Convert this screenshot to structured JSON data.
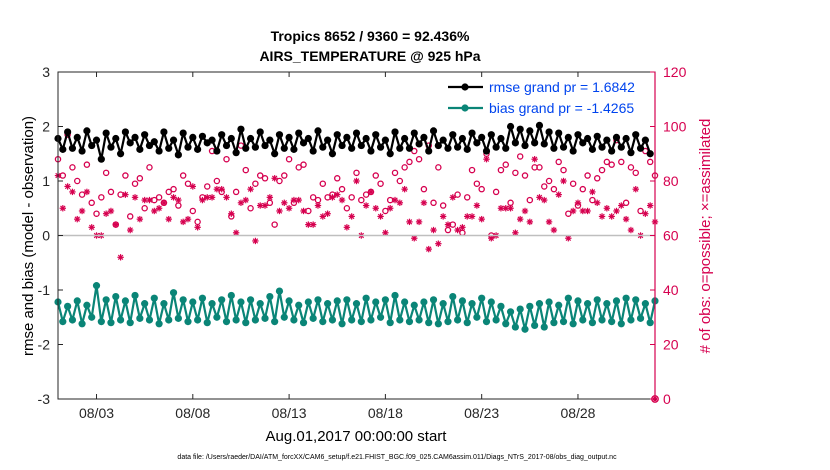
{
  "colors": {
    "rmse": "#000000",
    "bias": "#0a8577",
    "obs": "#d6004f",
    "zero_line": "#bfbfbf",
    "legend_text": "#0044ee"
  },
  "chart_data": {
    "type": "line",
    "title_line1": "Tropics 8652 / 9360 = 92.436%",
    "title_line2": "AIRS_TEMPERATURE @ 925 hPa",
    "ylabel_left": "rmse and bias (model - observation)",
    "ylabel_right": "# of obs: o=possible; ×=assimilated",
    "xlabel": "Aug.01,2017 00:00:00 start",
    "footnote": "data file: /Users/raeder/DAI/ATM_forcXX/CAM6_setup/f.e21.FHIST_BGC.f09_025.CAM6assim.011/Diags_NTrS_2017-08/obs_diag_output.nc",
    "x_range": [
      1.0,
      32.0
    ],
    "ylim_left": [
      -3,
      3
    ],
    "ylim_right": [
      0,
      120
    ],
    "y_ticks_left": [
      "3",
      "2",
      "1",
      "0",
      "-1",
      "-2",
      "-3"
    ],
    "y_ticks_right": [
      "120",
      "100",
      "80",
      "60",
      "40",
      "20",
      "0"
    ],
    "x_ticks": [
      {
        "day": 3,
        "label": "08/03"
      },
      {
        "day": 8,
        "label": "08/08"
      },
      {
        "day": 13,
        "label": "08/13"
      },
      {
        "day": 18,
        "label": "08/18"
      },
      {
        "day": 23,
        "label": "08/23"
      },
      {
        "day": 28,
        "label": "08/28"
      }
    ],
    "legend": {
      "position": "top-right",
      "entries": [
        "rmse grand pr = 1.6842",
        "bias grand pr = -1.4265"
      ]
    },
    "x_start": 1.0,
    "x_step": 0.25,
    "series": [
      {
        "name": "rmse",
        "axis": "left",
        "values": [
          1.78,
          1.58,
          1.9,
          1.6,
          1.8,
          1.55,
          1.92,
          1.65,
          1.75,
          1.4,
          1.88,
          1.62,
          1.78,
          1.5,
          1.9,
          1.7,
          1.8,
          1.58,
          1.85,
          1.65,
          1.72,
          1.55,
          1.9,
          1.6,
          1.75,
          1.48,
          1.88,
          1.62,
          1.8,
          1.58,
          1.82,
          1.7,
          1.75,
          1.55,
          1.85,
          1.65,
          1.78,
          1.52,
          1.95,
          1.6,
          1.78,
          1.62,
          1.9,
          1.65,
          1.75,
          1.5,
          1.85,
          1.6,
          1.8,
          1.58,
          1.88,
          1.7,
          1.78,
          1.55,
          1.92,
          1.62,
          1.75,
          1.5,
          1.85,
          1.65,
          1.8,
          1.6,
          1.88,
          1.65,
          1.78,
          1.55,
          1.85,
          1.62,
          1.75,
          1.5,
          1.9,
          1.6,
          1.78,
          1.6,
          1.88,
          1.68,
          1.8,
          1.55,
          1.92,
          1.65,
          1.75,
          1.6,
          1.85,
          1.62,
          1.78,
          1.58,
          1.88,
          1.7,
          1.8,
          1.55,
          1.85,
          1.62,
          1.78,
          1.6,
          2.0,
          1.7,
          1.95,
          1.65,
          1.92,
          1.7,
          2.02,
          1.68,
          1.9,
          1.6,
          1.88,
          1.62,
          1.8,
          1.55,
          1.85,
          1.7,
          1.78,
          1.58,
          1.82,
          1.62,
          1.75,
          1.55,
          1.8,
          1.62,
          1.78,
          1.52,
          1.85,
          1.6,
          1.75,
          1.5
        ]
      },
      {
        "name": "bias",
        "axis": "left",
        "values": [
          -1.22,
          -1.58,
          -1.3,
          -1.55,
          -1.2,
          -1.62,
          -1.28,
          -1.5,
          -0.92,
          -1.58,
          -1.18,
          -1.6,
          -1.12,
          -1.55,
          -1.2,
          -1.6,
          -1.1,
          -1.52,
          -1.25,
          -1.55,
          -1.15,
          -1.62,
          -1.25,
          -1.55,
          -1.05,
          -1.52,
          -1.18,
          -1.58,
          -1.22,
          -1.55,
          -1.15,
          -1.6,
          -1.25,
          -1.5,
          -1.18,
          -1.58,
          -1.1,
          -1.55,
          -1.22,
          -1.6,
          -1.18,
          -1.55,
          -1.25,
          -1.52,
          -1.12,
          -1.58,
          -1.02,
          -1.5,
          -1.2,
          -1.55,
          -1.28,
          -1.6,
          -1.22,
          -1.52,
          -1.18,
          -1.58,
          -1.25,
          -1.55,
          -1.2,
          -1.62,
          -1.18,
          -1.55,
          -1.25,
          -1.58,
          -1.15,
          -1.55,
          -1.22,
          -1.5,
          -1.18,
          -1.6,
          -1.1,
          -1.55,
          -1.22,
          -1.58,
          -1.28,
          -1.55,
          -1.22,
          -1.6,
          -1.18,
          -1.62,
          -1.25,
          -1.58,
          -1.12,
          -1.55,
          -1.2,
          -1.6,
          -1.25,
          -1.5,
          -1.15,
          -1.58,
          -1.22,
          -1.55,
          -1.3,
          -1.62,
          -1.4,
          -1.68,
          -1.35,
          -1.72,
          -1.3,
          -1.65,
          -1.25,
          -1.68,
          -1.22,
          -1.6,
          -1.28,
          -1.58,
          -1.15,
          -1.62,
          -1.2,
          -1.55,
          -1.25,
          -1.6,
          -1.18,
          -1.55,
          -1.25,
          -1.58,
          -1.2,
          -1.62,
          -1.15,
          -1.55,
          -1.18,
          -1.52,
          -1.25,
          -1.6,
          -1.2,
          -1.55
        ]
      },
      {
        "name": "obs possible (o)",
        "axis": "right",
        "values": [
          88,
          82,
          97,
          85,
          80,
          75,
          86,
          72,
          68,
          74,
          83,
          76,
          64,
          75,
          82,
          67,
          79,
          81,
          70,
          85,
          73,
          74,
          72,
          76,
          77,
          71,
          82,
          79,
          69,
          65,
          74,
          78,
          91,
          80,
          76,
          88,
          67,
          76,
          93,
          84,
          70,
          79,
          82,
          81,
          72,
          64,
          80,
          82,
          88,
          72,
          85,
          86,
          69,
          74,
          73,
          79,
          74,
          75,
          81,
          77,
          70,
          74,
          83,
          73,
          75,
          76,
          82,
          79,
          69,
          73,
          83,
          80,
          85,
          87,
          91,
          88,
          77,
          93,
          72,
          85,
          71,
          62,
          64,
          75,
          61,
          74,
          84,
          79,
          77,
          90,
          60,
          76,
          84,
          86,
          72,
          83,
          89,
          82,
          73,
          85,
          85,
          78,
          80,
          77,
          87,
          84,
          68,
          79,
          71,
          77,
          82,
          73,
          81,
          84,
          87,
          86,
          95,
          87,
          72,
          85,
          83,
          69,
          91,
          87,
          82,
          91
        ]
      },
      {
        "name": "obs assimilated (x)",
        "axis": "right",
        "values": [
          82,
          70,
          78,
          76,
          66,
          69,
          76,
          63,
          60,
          60,
          68,
          69,
          64,
          52,
          75,
          62,
          74,
          66,
          73,
          73,
          69,
          70,
          72,
          66,
          74,
          73,
          65,
          66,
          78,
          63,
          73,
          74,
          74,
          77,
          77,
          74,
          68,
          61,
          72,
          73,
          77,
          58,
          71,
          71,
          74,
          81,
          69,
          72,
          70,
          73,
          73,
          69,
          64,
          64,
          71,
          67,
          68,
          74,
          75,
          73,
          63,
          67,
          80,
          60,
          71,
          76,
          70,
          67,
          61,
          70,
          73,
          72,
          77,
          65,
          59,
          65,
          72,
          55,
          62,
          57,
          67,
          64,
          74,
          62,
          63,
          67,
          67,
          71,
          66,
          88,
          59,
          60,
          70,
          70,
          70,
          61,
          66,
          69,
          65,
          88,
          74,
          73,
          65,
          62,
          75,
          80,
          59,
          69,
          72,
          69,
          69,
          76,
          72,
          67,
          70,
          67,
          69,
          71,
          66,
          62,
          77,
          60,
          68,
          71,
          65,
          65
        ]
      }
    ]
  }
}
